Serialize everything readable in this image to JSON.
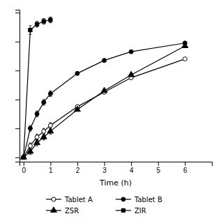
{
  "chart_data": {
    "type": "line",
    "x_label": "Time (h)",
    "series": [
      {
        "name": "Tablet A",
        "color": "#000000",
        "marker": "circle-open",
        "x": [
          0,
          0.25,
          0.5,
          0.75,
          1,
          2,
          3,
          4,
          6
        ],
        "values": [
          0,
          8,
          14,
          18,
          22,
          35,
          45,
          55,
          68
        ],
        "errors": [
          0,
          2,
          2,
          2,
          2,
          0,
          0,
          0,
          0
        ]
      },
      {
        "name": "Tablet B",
        "color": "#000000",
        "marker": "circle",
        "x": [
          0,
          0.25,
          0.5,
          0.75,
          1,
          2,
          3,
          4,
          6
        ],
        "values": [
          0,
          20,
          30,
          38,
          44,
          58,
          67,
          73,
          79
        ],
        "errors": [
          0,
          2,
          2,
          2,
          2,
          0,
          0,
          0,
          0
        ]
      },
      {
        "name": "ZSR",
        "color": "#000000",
        "marker": "triangle",
        "x": [
          0,
          0.25,
          0.5,
          0.75,
          1,
          2,
          3,
          4,
          6
        ],
        "values": [
          0,
          4,
          10,
          14,
          18,
          33,
          46,
          57,
          77
        ],
        "errors": [
          0,
          2,
          2,
          2,
          2,
          0,
          0,
          0,
          0
        ]
      },
      {
        "name": "ZIR",
        "color": "#000000",
        "marker": "square",
        "x": [
          0,
          0.25,
          0.5,
          0.75,
          1
        ],
        "values": [
          0,
          88,
          92,
          94,
          95
        ],
        "errors": [
          0,
          3,
          2,
          2,
          2
        ]
      }
    ],
    "xlim": [
      -0.15,
      7.0
    ],
    "ylim": [
      -3,
      102
    ],
    "xticks": [
      0,
      1,
      2,
      3,
      4,
      5,
      6
    ],
    "yticks": [
      0,
      20,
      40,
      60,
      80,
      100
    ],
    "tick_labels": "x",
    "grid": false,
    "legend": "bottom"
  }
}
